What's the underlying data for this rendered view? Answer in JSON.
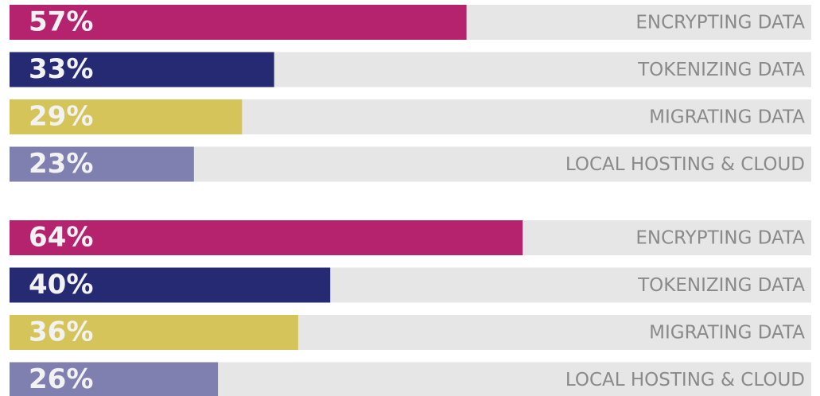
{
  "chart_data": [
    {
      "type": "bar",
      "orientation": "horizontal",
      "categories": [
        "ENCRYPTING DATA",
        "TOKENIZING DATA",
        "MIGRATING DATA",
        "LOCAL HOSTING & CLOUD"
      ],
      "values": [
        57,
        33,
        29,
        23
      ],
      "value_labels": [
        "57%",
        "33%",
        "29%",
        "23%"
      ],
      "colors": [
        "#b5236f",
        "#252a72",
        "#d4c45a",
        "#8080b0"
      ],
      "xlim": [
        0,
        100
      ]
    },
    {
      "type": "bar",
      "orientation": "horizontal",
      "categories": [
        "ENCRYPTING DATA",
        "TOKENIZING DATA",
        "MIGRATING DATA",
        "LOCAL HOSTING & CLOUD"
      ],
      "values": [
        64,
        40,
        36,
        26
      ],
      "value_labels": [
        "64%",
        "40%",
        "36%",
        "26%"
      ],
      "colors": [
        "#b5236f",
        "#252a72",
        "#d4c45a",
        "#8080b0"
      ],
      "xlim": [
        0,
        100
      ]
    }
  ]
}
